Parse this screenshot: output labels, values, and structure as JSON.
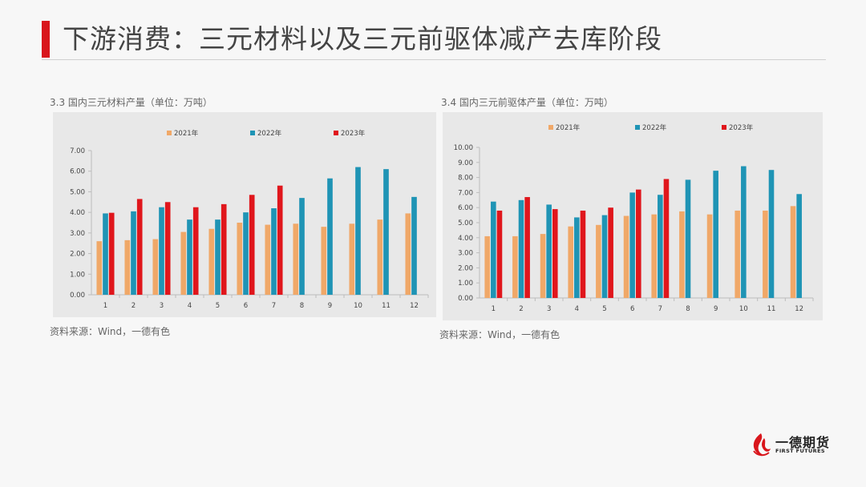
{
  "page": {
    "title": "下游消费：三元材料以及三元前驱体减产去库阶段",
    "accent_color": "#d9161c"
  },
  "colors": {
    "2021": "#f0a868",
    "2022": "#1f94b5",
    "2023": "#e0161c"
  },
  "logo": {
    "name": "一德期货",
    "subtitle": "FIRST FUTURES",
    "icon": "flame-swirl-icon"
  },
  "chart_data": [
    {
      "type": "bar",
      "caption": "3.3 国内三元材料产量（单位：万吨）",
      "source": "资料来源：Wind，一德有色",
      "categories": [
        "1",
        "2",
        "3",
        "4",
        "5",
        "6",
        "7",
        "8",
        "9",
        "10",
        "11",
        "12"
      ],
      "ylim": [
        0,
        7
      ],
      "yticks": [
        "0.00",
        "1.00",
        "2.00",
        "3.00",
        "4.00",
        "5.00",
        "6.00",
        "7.00"
      ],
      "legend_position": "top",
      "grid": false,
      "series": [
        {
          "name": "2021年",
          "values": [
            2.6,
            2.65,
            2.7,
            3.05,
            3.2,
            3.5,
            3.4,
            3.45,
            3.3,
            3.45,
            3.65,
            3.95
          ]
        },
        {
          "name": "2022年",
          "values": [
            3.95,
            4.05,
            4.25,
            3.65,
            3.65,
            4.0,
            4.2,
            4.7,
            5.65,
            6.2,
            6.1,
            4.75
          ]
        },
        {
          "name": "2023年",
          "values": [
            3.98,
            4.65,
            4.5,
            4.25,
            4.4,
            4.85,
            5.3,
            null,
            null,
            null,
            null,
            null
          ]
        }
      ]
    },
    {
      "type": "bar",
      "caption": "3.4 国内三元前驱体产量（单位：万吨）",
      "source": "资料来源：Wind，一德有色",
      "categories": [
        "1",
        "2",
        "3",
        "4",
        "5",
        "6",
        "7",
        "8",
        "9",
        "10",
        "11",
        "12"
      ],
      "ylim": [
        0,
        10
      ],
      "yticks": [
        "0.00",
        "1.00",
        "2.00",
        "3.00",
        "4.00",
        "5.00",
        "6.00",
        "7.00",
        "8.00",
        "9.00",
        "10.00"
      ],
      "legend_position": "top",
      "grid": false,
      "series": [
        {
          "name": "2021年",
          "values": [
            4.1,
            4.1,
            4.25,
            4.75,
            4.85,
            5.45,
            5.55,
            5.75,
            5.55,
            5.8,
            5.8,
            6.1
          ]
        },
        {
          "name": "2022年",
          "values": [
            6.4,
            6.5,
            6.2,
            5.35,
            5.5,
            7.0,
            6.85,
            7.85,
            8.45,
            8.75,
            8.5,
            6.9
          ]
        },
        {
          "name": "2023年",
          "values": [
            5.8,
            6.7,
            5.9,
            5.8,
            6.0,
            7.2,
            7.9,
            null,
            null,
            null,
            null,
            null
          ]
        }
      ]
    }
  ]
}
